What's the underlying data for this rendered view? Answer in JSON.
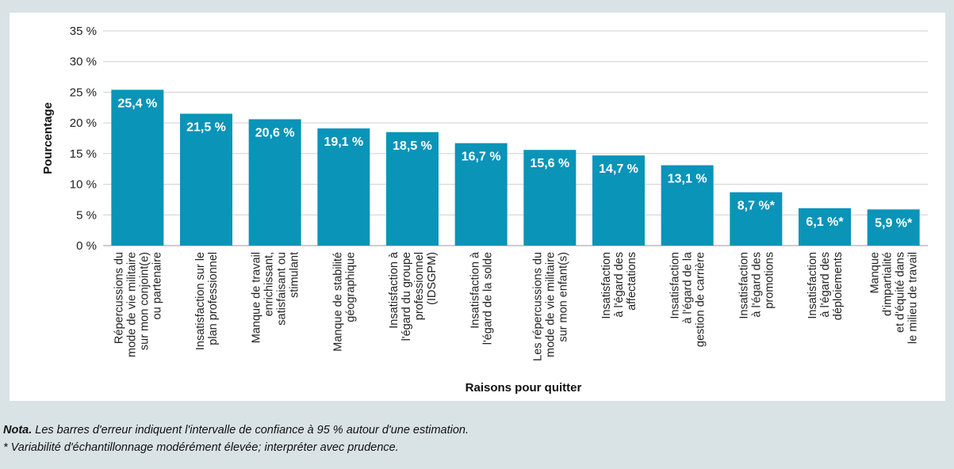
{
  "caption": "",
  "chart_data": {
    "type": "bar",
    "xlabel": "Raisons pour quitter",
    "ylabel": "Pourcentage",
    "ylim": [
      0,
      35
    ],
    "yticks": [
      0,
      5,
      10,
      15,
      20,
      25,
      30,
      35
    ],
    "ytick_labels": [
      "0 %",
      "5 %",
      "10 %",
      "15 %",
      "20 %",
      "25 %",
      "30 %",
      "35 %"
    ],
    "grid": true,
    "bar_color": "#0a94b8",
    "categories": [
      [
        "Répercussions du",
        "mode de vie militaire",
        "sur mon conjoint(e)",
        "ou partenaire"
      ],
      [
        "Insatisfaction sur le",
        "plan professionnel"
      ],
      [
        "Manque de travail",
        "enrichissant,",
        "satisfaisant ou",
        "stimulant"
      ],
      [
        "Manque de stabilité",
        "géographique"
      ],
      [
        "Insatisfaction à",
        "l'égard du groupe",
        "professionnel",
        "(IDSGPM)"
      ],
      [
        "Insatisfaction à",
        "l'égard de la solde"
      ],
      [
        "Les répercussions du",
        "mode de vie militaire",
        "sur mon enfant(s)"
      ],
      [
        "Insatisfaction",
        "à l'égard des",
        "affectations"
      ],
      [
        "Insatisfaction",
        "à l'égard de la",
        "gestion de carrière"
      ],
      [
        "Insatisfaction",
        "à l'égard des",
        "promotions"
      ],
      [
        "Insatisfaction",
        "à l'égard des",
        "déploiements"
      ],
      [
        "Manque",
        "d'impartialité",
        "et d'équité dans",
        "le milieu de travail"
      ]
    ],
    "values": [
      25.4,
      21.5,
      20.6,
      19.1,
      18.5,
      16.7,
      15.6,
      14.7,
      13.1,
      8.7,
      6.1,
      5.9
    ],
    "data_labels": [
      "25,4 %",
      "21,5 %",
      "20,6 %",
      "19,1 %",
      "18,5 %",
      "16,7 %",
      "15,6 %",
      "14,7 %",
      "13,1 %",
      "8,7 %*",
      "6,1 %*",
      "5,9 %*"
    ]
  },
  "notes": {
    "nota_label": "Nota.",
    "nota_text": " Les barres d'erreur indiquent l'intervalle de confiance à 95 % autour d'une estimation.",
    "asterisk_text": "* Variabilité d'échantillonnage modérément élevée; interpréter avec prudence."
  }
}
